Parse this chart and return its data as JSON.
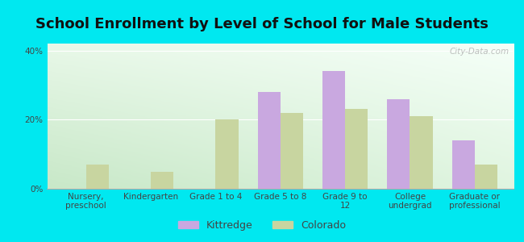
{
  "title": "School Enrollment by Level of School for Male Students",
  "categories": [
    "Nursery,\npreschool",
    "Kindergarten",
    "Grade 1 to 4",
    "Grade 5 to 8",
    "Grade 9 to\n12",
    "College\nundergrad",
    "Graduate or\nprofessional"
  ],
  "kittredge": [
    0,
    0,
    0,
    28,
    34,
    26,
    14
  ],
  "colorado": [
    7,
    5,
    20,
    22,
    23,
    21,
    7
  ],
  "kittredge_color": "#c9a8e0",
  "colorado_color": "#c8d5a0",
  "background_color": "#00e8f0",
  "grad_top_left": "#d8f0d8",
  "grad_bottom_right": "#f0fff8",
  "ylabel_ticks": [
    "0%",
    "20%",
    "40%"
  ],
  "yticks": [
    0,
    20,
    40
  ],
  "ylim": [
    0,
    42
  ],
  "bar_width": 0.35,
  "title_fontsize": 13,
  "tick_fontsize": 7.5,
  "legend_fontsize": 9,
  "tick_color": "#444444",
  "title_color": "#111111",
  "watermark": "City-Data.com"
}
